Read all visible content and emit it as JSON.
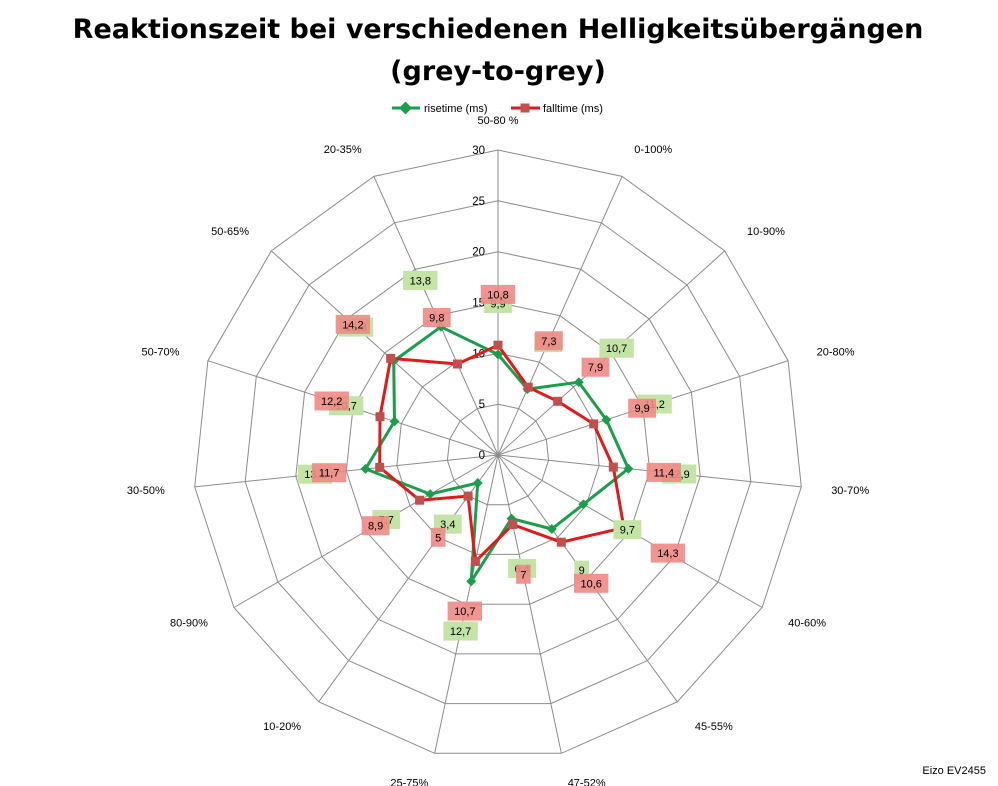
{
  "chart_data": {
    "type": "radar",
    "title_line1": "Reaktionszeit bei verschiedenen Helligkeitsübergängen",
    "title_line2": "(grey-to-grey)",
    "categories": [
      "50-80 %",
      "0-100%",
      "10-90%",
      "20-80%",
      "30-70%",
      "40-60%",
      "45-55%",
      "47-52%",
      "25-75%",
      "10-20%",
      "80-90%",
      "30-50%",
      "50-70%",
      "50-65%",
      "20-35%"
    ],
    "ticks": [
      "0",
      "5",
      "10",
      "15",
      "20",
      "25",
      "30"
    ],
    "rmax": 30,
    "grid": true,
    "legend_position": "top",
    "series": [
      {
        "name": "risetime (ms)",
        "color": "#1a9e4a",
        "label_bg": "#c4e3a6",
        "marker": "diamond",
        "values": [
          9.9,
          7.1,
          10.7,
          11.2,
          12.9,
          9.7,
          9,
          6.4,
          12.7,
          3.4,
          7.7,
          13.1,
          10.7,
          13.8,
          13.8
        ],
        "labels": [
          "9,9",
          "7,1",
          "10,7",
          "11,2",
          "12,9",
          "9,7",
          "9",
          "6,4",
          "12,7",
          "3,4",
          "7,7",
          "13,1",
          "10,7",
          "13,8",
          "13,8"
        ]
      },
      {
        "name": "falltime (ms)",
        "color": "#e01a1a",
        "label_bg": "#f08a86",
        "marker": "square",
        "values": [
          10.8,
          7.3,
          7.9,
          9.9,
          11.4,
          14.3,
          10.6,
          7,
          10.7,
          5,
          8.9,
          11.7,
          12.2,
          14.2,
          9.8
        ],
        "labels": [
          "10,8",
          "7,3",
          "7,9",
          "9,9",
          "11,4",
          "14,3",
          "10,6",
          "7",
          "10,7",
          "5",
          "8,9",
          "11,7",
          "12,2",
          "14,2",
          "9,8"
        ]
      }
    ]
  },
  "watermark": "Eizo EV2455"
}
